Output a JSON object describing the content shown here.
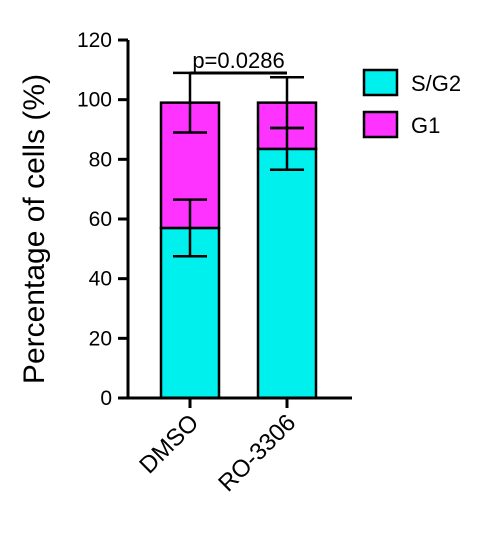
{
  "chart_data": {
    "type": "bar",
    "stacked": true,
    "categories": [
      "DMSO",
      "RO-3306"
    ],
    "series": [
      {
        "name": "S/G2",
        "values": [
          57,
          83.5
        ],
        "error": [
          9.5,
          7
        ],
        "color": "#00f0ee"
      },
      {
        "name": "G1",
        "values": [
          42,
          15.5
        ],
        "error": [
          10,
          8.5
        ],
        "color": "#ff33ff"
      }
    ],
    "ylabel": "Percentage of cells (%)",
    "xlabel": "",
    "ylim": [
      0,
      120
    ],
    "yticks": [
      0,
      20,
      40,
      60,
      80,
      100,
      120
    ],
    "legend_position": "right",
    "annotation": "p=0.0286",
    "grid": false
  }
}
